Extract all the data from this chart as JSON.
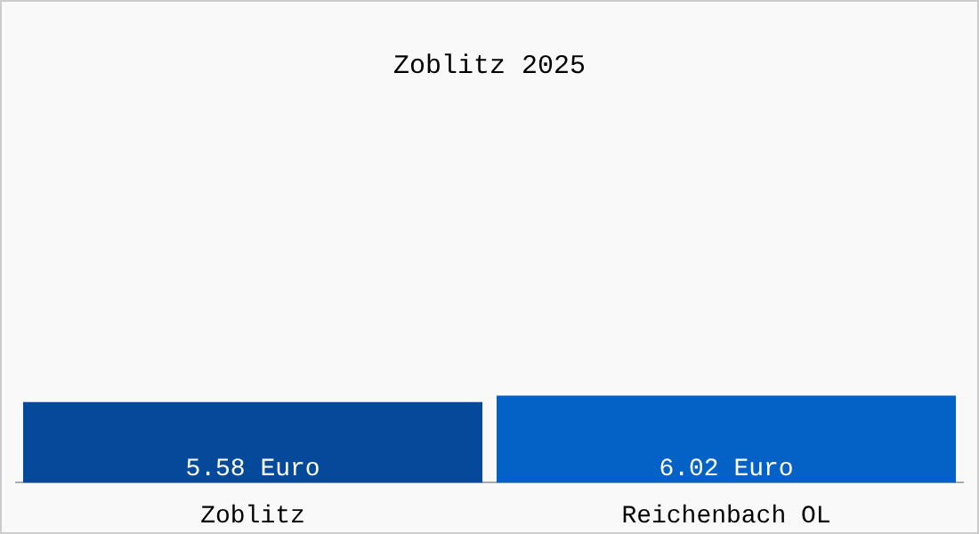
{
  "chart_data": {
    "type": "bar",
    "title": "Zoblitz 2025",
    "categories": [
      "Zoblitz",
      "Reichenbach OL"
    ],
    "values": [
      5.58,
      6.02
    ],
    "colors": [
      "#05499a",
      "#0462c6"
    ],
    "value_labels": [
      "5.58 Euro",
      "6.02 Euro"
    ]
  }
}
